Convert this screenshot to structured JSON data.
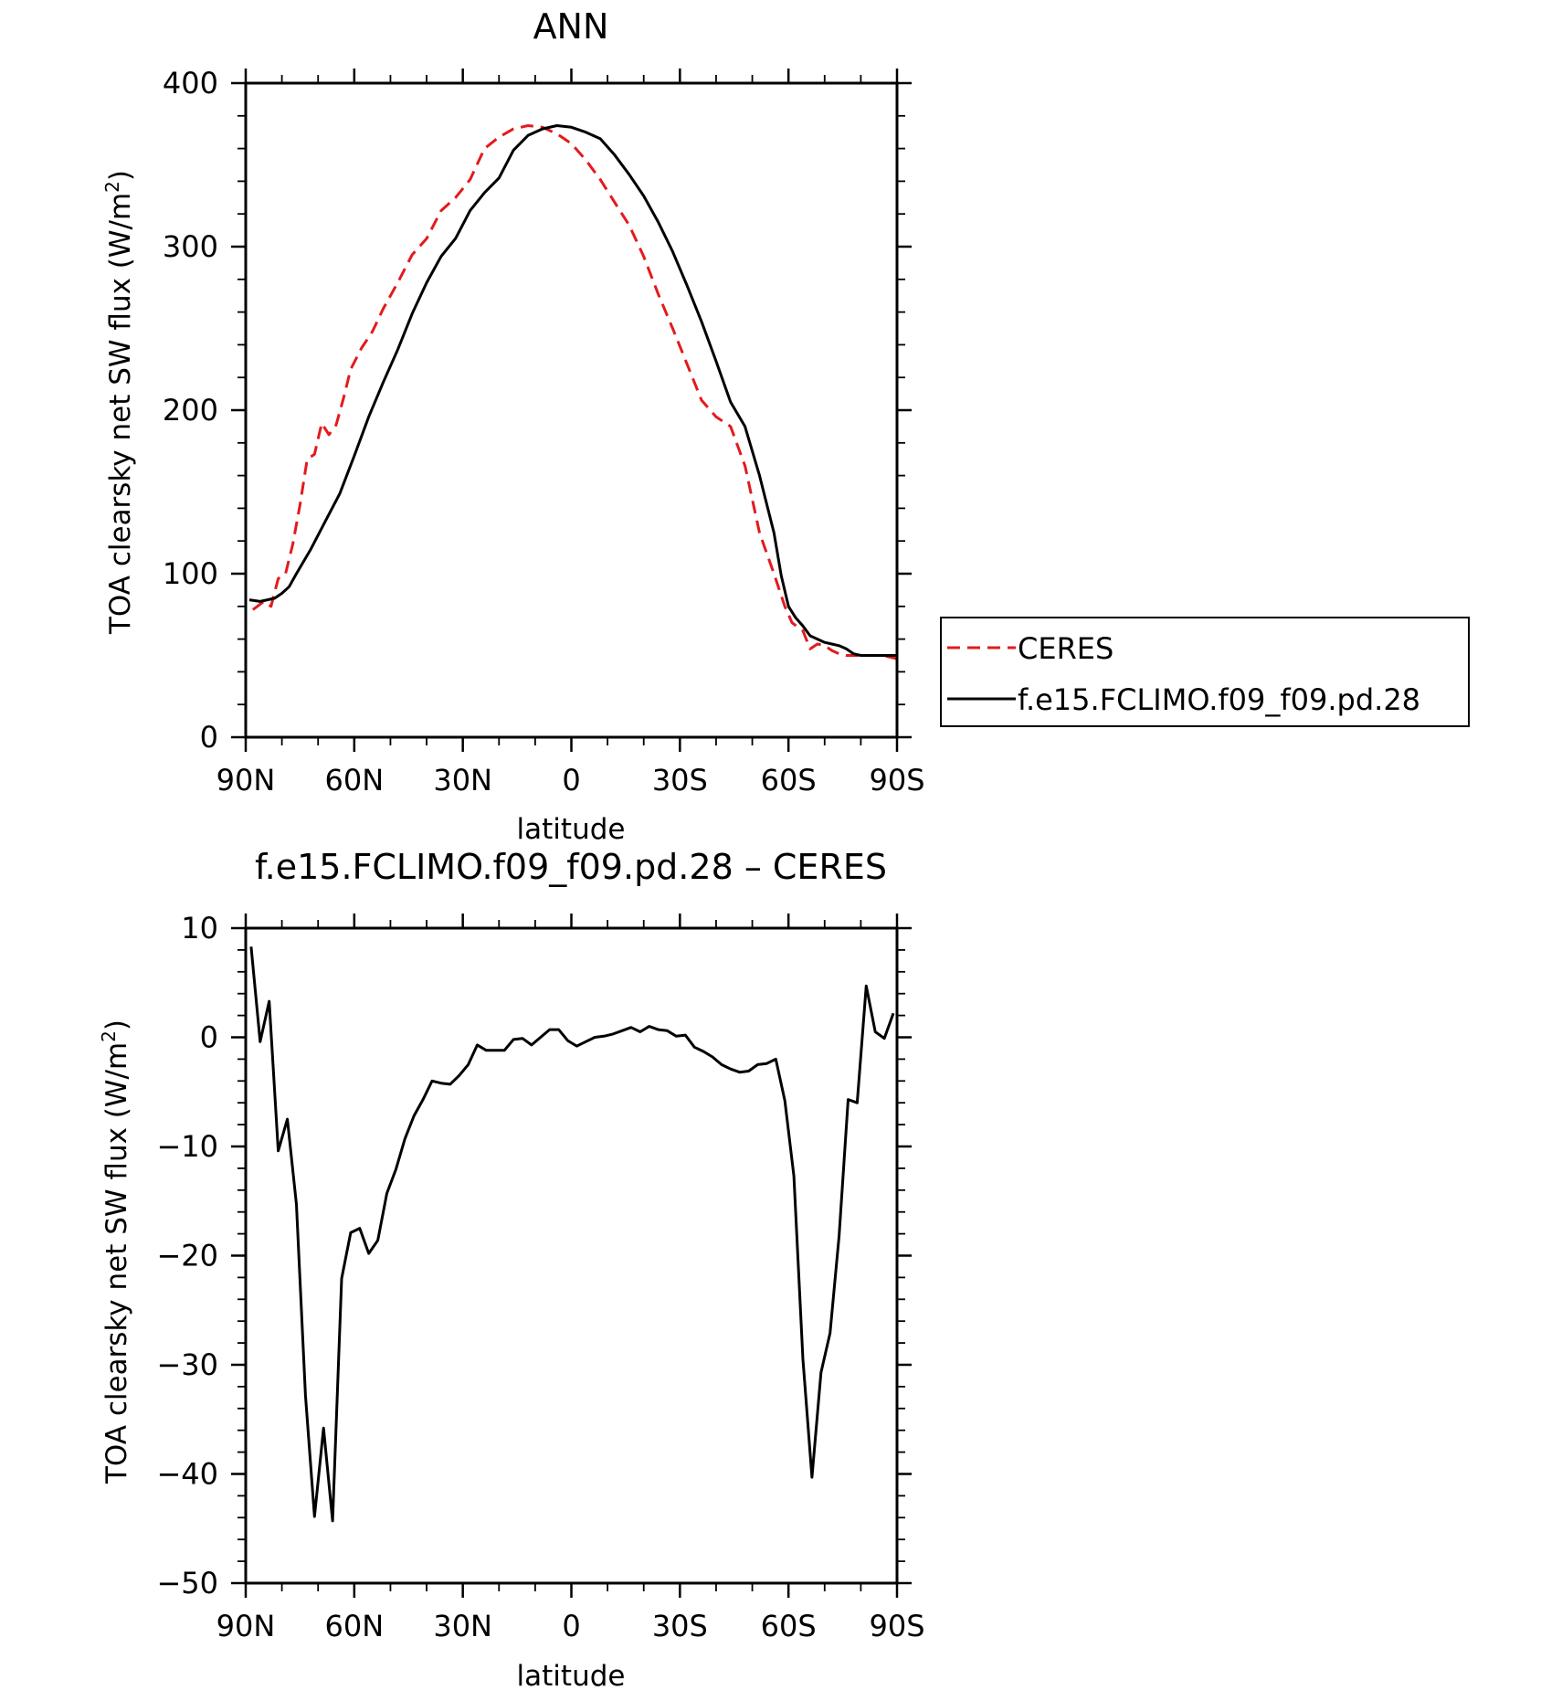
{
  "chart_data": [
    {
      "type": "line",
      "title": "ANN",
      "xlabel": "latitude",
      "ylabel": "TOA clearsky net SW flux (W/m2)",
      "x_tick_labels": [
        "90N",
        "60N",
        "30N",
        "0",
        "30S",
        "60S",
        "90S"
      ],
      "x_ticks": [
        -90,
        -60,
        -30,
        0,
        30,
        60,
        90
      ],
      "xlim": [
        -90,
        90
      ],
      "ylim": [
        0,
        400
      ],
      "y_ticks": [
        0,
        100,
        200,
        300,
        400
      ],
      "y_tick_labels": [
        "0",
        "100",
        "200",
        "300",
        "400"
      ],
      "legend_position": "right",
      "series": [
        {
          "name": "CERES",
          "color": "#e41a1c",
          "dash": "dashed",
          "x": [
            -88,
            -85,
            -83,
            -81,
            -79,
            -77,
            -75,
            -73,
            -71,
            -69,
            -67,
            -65,
            -63,
            -61,
            -58,
            -55,
            -52,
            -48,
            -44,
            -40,
            -36,
            -32,
            -28,
            -24,
            -20,
            -16,
            -12,
            -8,
            -4,
            0,
            4,
            8,
            12,
            16,
            20,
            24,
            28,
            32,
            36,
            40,
            44,
            48,
            52,
            56,
            59,
            61,
            64,
            66,
            68,
            70,
            72,
            74,
            76,
            78,
            80,
            82,
            84,
            86,
            88,
            90
          ],
          "y": [
            78,
            83,
            80,
            97,
            100,
            118,
            142,
            170,
            173,
            192,
            185,
            191,
            207,
            225,
            238,
            248,
            262,
            278,
            295,
            305,
            322,
            330,
            341,
            360,
            367,
            372,
            374,
            373,
            369,
            363,
            353,
            341,
            327,
            313,
            294,
            271,
            250,
            228,
            206,
            196,
            190,
            166,
            125,
            100,
            80,
            70,
            65,
            54,
            57,
            56,
            53,
            51,
            50,
            50,
            50,
            50,
            50,
            50,
            49,
            48
          ]
        },
        {
          "name": "f.e15.FCLIMO.f09_f09.pd.28",
          "color": "#000000",
          "dash": "solid",
          "x": [
            -89,
            -86,
            -84,
            -82,
            -80,
            -78,
            -76,
            -72,
            -68,
            -64,
            -60,
            -56,
            -52,
            -48,
            -44,
            -40,
            -36,
            -32,
            -28,
            -24,
            -20,
            -16,
            -12,
            -8,
            -4,
            0,
            4,
            8,
            12,
            16,
            20,
            24,
            28,
            32,
            36,
            40,
            44,
            48,
            52,
            56,
            58,
            60,
            62,
            64,
            66,
            68,
            70,
            72,
            74,
            76,
            78,
            80,
            82,
            84,
            86,
            88,
            90
          ],
          "y": [
            84,
            83,
            84,
            85,
            88,
            92,
            100,
            115,
            132,
            149,
            172,
            196,
            217,
            237,
            259,
            278,
            294,
            305,
            322,
            333,
            342,
            359,
            368,
            372,
            374,
            373,
            370,
            366,
            356,
            344,
            331,
            315,
            297,
            276,
            254,
            230,
            205,
            190,
            160,
            125,
            99,
            80,
            73,
            68,
            62,
            60,
            58,
            57,
            56,
            54,
            51,
            50,
            50,
            50,
            50,
            50,
            50
          ]
        }
      ]
    },
    {
      "type": "line",
      "title": "f.e15.FCLIMO.f09_f09.pd.28 – CERES",
      "xlabel": "latitude",
      "ylabel": "TOA clearsky net SW flux (W/m2)",
      "x_tick_labels": [
        "90N",
        "60N",
        "30N",
        "0",
        "30S",
        "60S",
        "90S"
      ],
      "x_ticks": [
        -90,
        -60,
        -30,
        0,
        30,
        60,
        90
      ],
      "xlim": [
        -90,
        90
      ],
      "ylim": [
        -50,
        10
      ],
      "y_ticks": [
        -50,
        -40,
        -30,
        -20,
        -10,
        0,
        10
      ],
      "y_tick_labels": [
        "−50",
        "−40",
        "−30",
        "−20",
        "−10",
        "0",
        "10"
      ],
      "series": [
        {
          "color": "#000000",
          "dash": "solid",
          "x": [
            -88.5,
            -86,
            -83.5,
            -81,
            -78.5,
            -76,
            -73.5,
            -71,
            -68.5,
            -66,
            -63.5,
            -61,
            -58.5,
            -56,
            -53.5,
            -51,
            -48.5,
            -46,
            -43.5,
            -41,
            -38.5,
            -36,
            -33.5,
            -31,
            -28.5,
            -26,
            -23.5,
            -21,
            -18.5,
            -16,
            -13.5,
            -11,
            -8.5,
            -6,
            -3.5,
            -1,
            1.5,
            4,
            6.5,
            9,
            11.5,
            14,
            16.5,
            19,
            21.5,
            24,
            26.5,
            29,
            31.5,
            34,
            36.5,
            39,
            41.5,
            44,
            46.5,
            49,
            51.5,
            54,
            56.5,
            59,
            61.5,
            64,
            66.5,
            69,
            71.5,
            74,
            76.5,
            79,
            81.5,
            84,
            86.5,
            89
          ],
          "y": [
            8.3,
            -0.4,
            3.3,
            -10.4,
            -7.5,
            -15.3,
            -32.8,
            -43.9,
            -35.8,
            -44.3,
            -22.1,
            -17.9,
            -17.5,
            -19.8,
            -18.6,
            -14.3,
            -12.1,
            -9.3,
            -7.2,
            -5.7,
            -4.0,
            -4.2,
            -4.3,
            -3.5,
            -2.5,
            -0.7,
            -1.2,
            -1.2,
            -1.2,
            -0.2,
            -0.1,
            -0.7,
            0.0,
            0.7,
            0.7,
            -0.3,
            -0.8,
            -0.4,
            0.0,
            0.1,
            0.3,
            0.6,
            0.9,
            0.5,
            1.0,
            0.7,
            0.6,
            0.1,
            0.2,
            -0.9,
            -1.3,
            -1.8,
            -2.5,
            -2.9,
            -3.2,
            -3.1,
            -2.5,
            -2.4,
            -2.0,
            -5.8,
            -12.7,
            -29.5,
            -40.3,
            -30.7,
            -27.1,
            -18.2,
            -5.7,
            -6.0,
            4.7,
            0.5,
            -0.1,
            2.2
          ]
        }
      ]
    }
  ]
}
